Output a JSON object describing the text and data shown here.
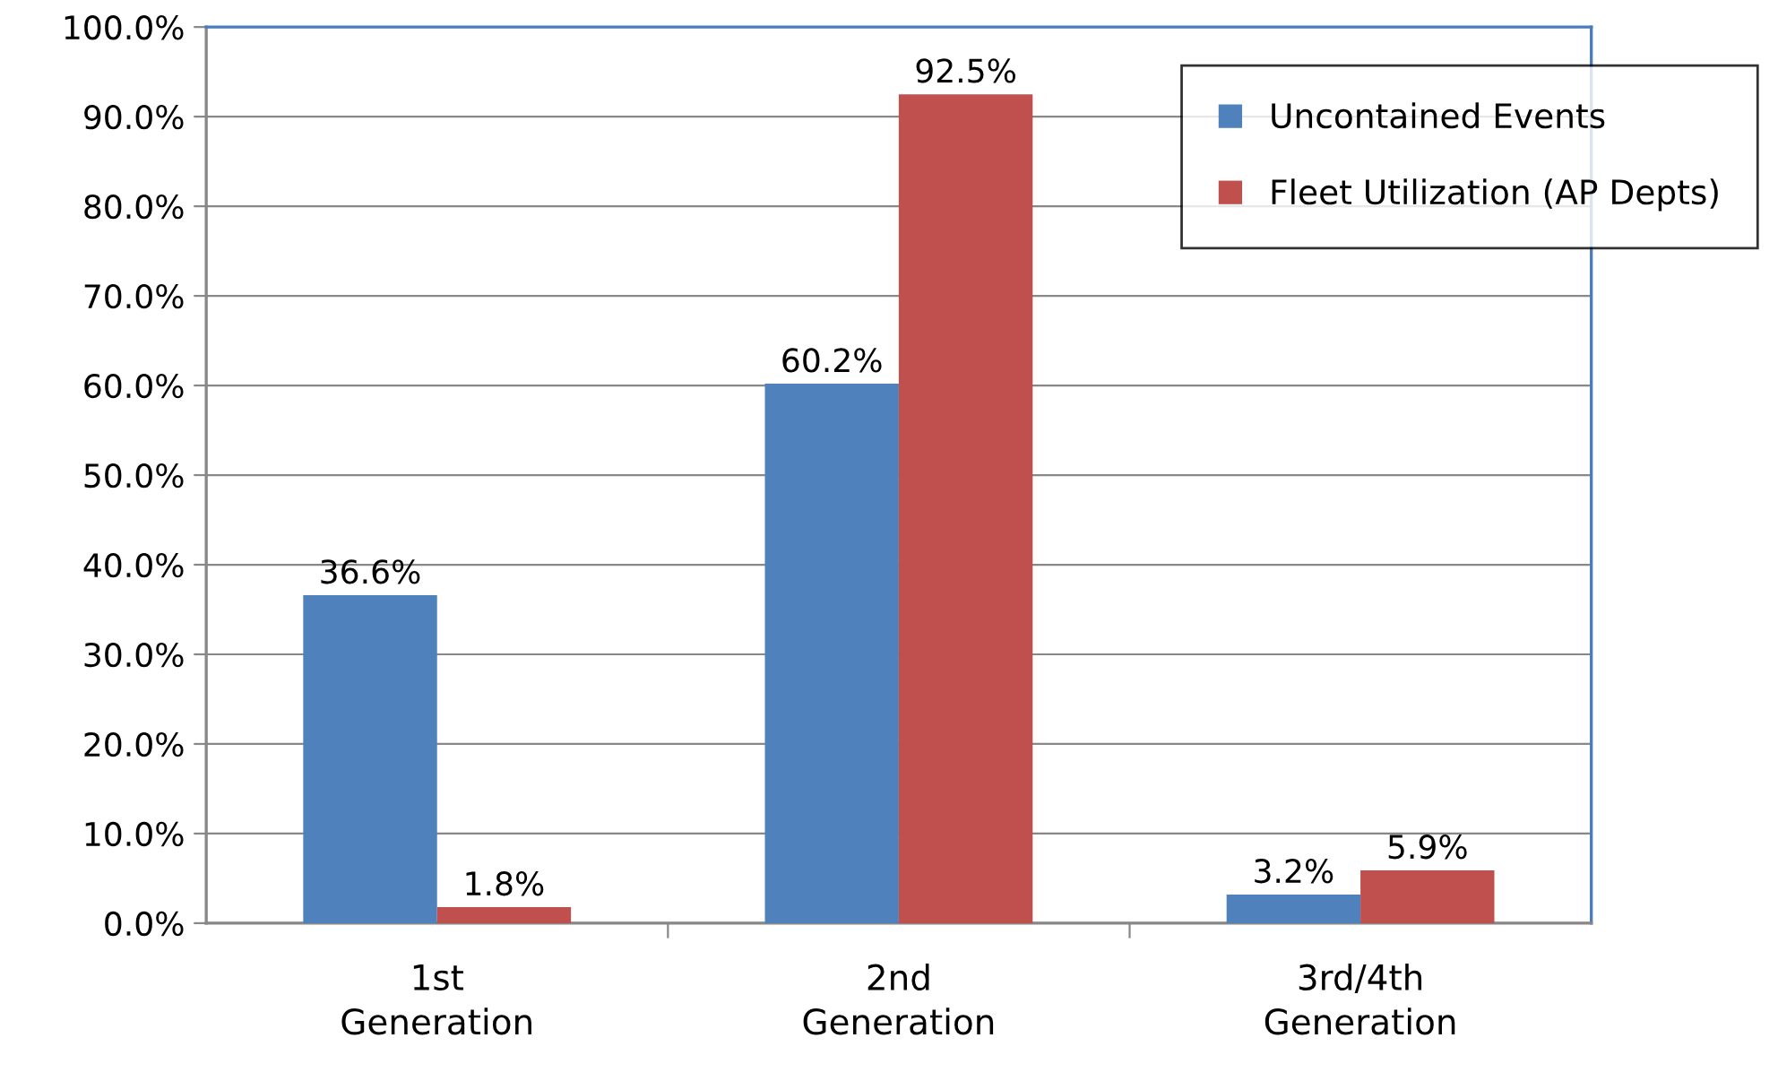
{
  "chart_data": {
    "type": "bar",
    "categories": [
      "1st Generation",
      "2nd Generation",
      "3rd/4th Generation"
    ],
    "series": [
      {
        "name": "Uncontained Events",
        "color": "#4f81bd",
        "values": [
          36.6,
          60.2,
          3.2
        ],
        "value_labels": [
          "36.6%",
          "60.2%",
          "3.2%"
        ]
      },
      {
        "name": "Fleet Utilization (AP Depts)",
        "color": "#c0504d",
        "values": [
          1.8,
          92.5,
          5.9
        ],
        "value_labels": [
          "1.8%",
          "92.5%",
          "5.9%"
        ]
      }
    ],
    "ylim": [
      0,
      100
    ],
    "yticks": [
      {
        "value": 0,
        "label": "0.0%"
      },
      {
        "value": 10,
        "label": "10.0%"
      },
      {
        "value": 20,
        "label": "20.0%"
      },
      {
        "value": 30,
        "label": "30.0%"
      },
      {
        "value": 40,
        "label": "40.0%"
      },
      {
        "value": 50,
        "label": "50.0%"
      },
      {
        "value": 60,
        "label": "60.0%"
      },
      {
        "value": 70,
        "label": "70.0%"
      },
      {
        "value": 80,
        "label": "80.0%"
      },
      {
        "value": 90,
        "label": "90.0%"
      },
      {
        "value": 100,
        "label": "100.0%"
      }
    ],
    "grid": "y",
    "legend": "top right"
  }
}
